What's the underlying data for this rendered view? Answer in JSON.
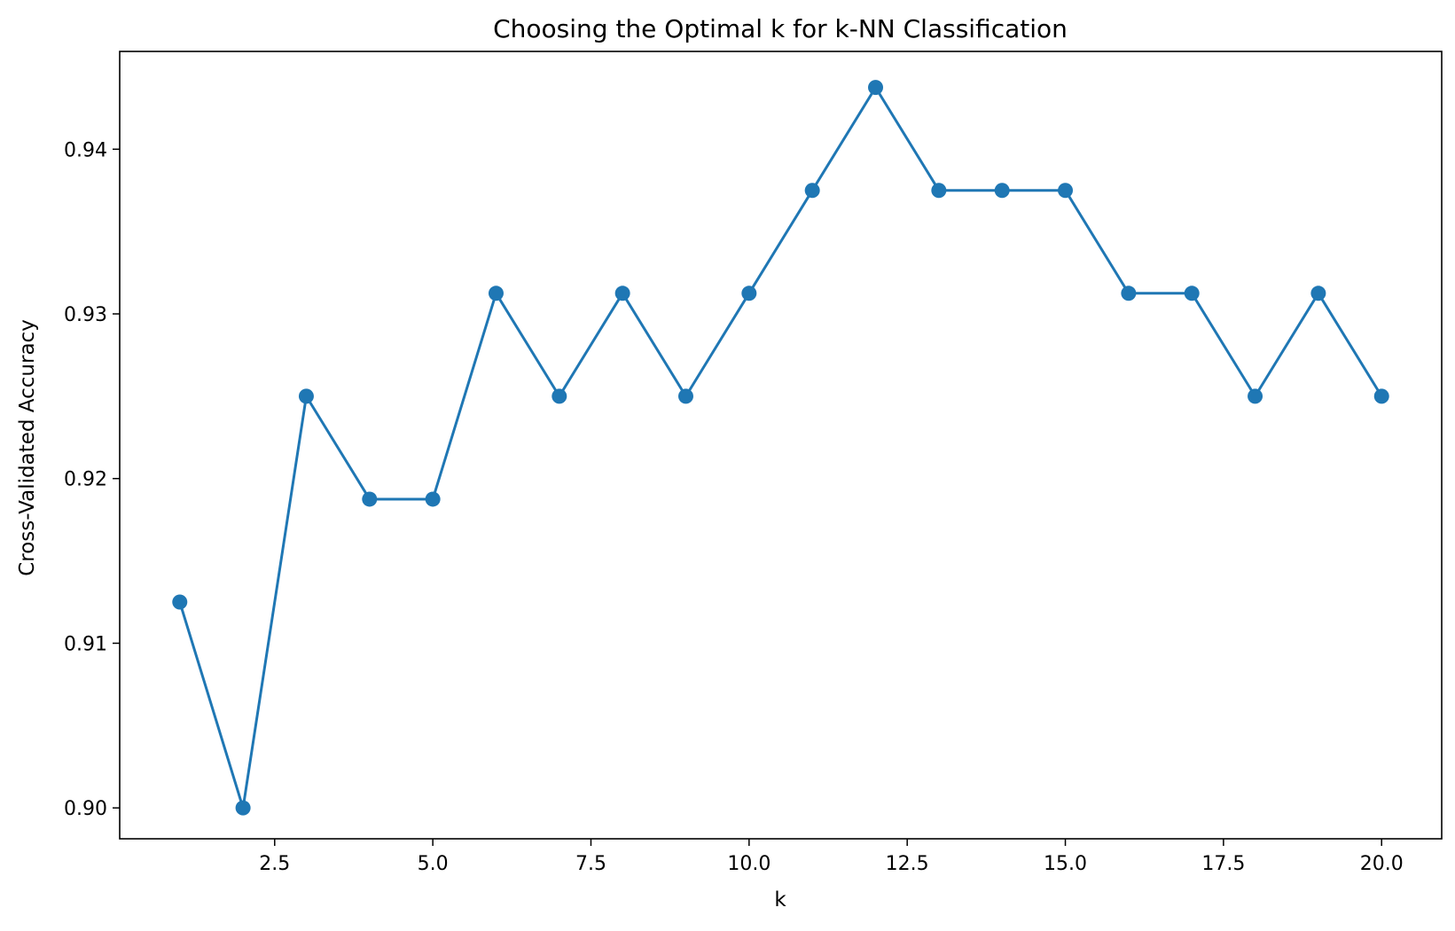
{
  "chart_data": {
    "type": "line",
    "title": "Choosing the Optimal k for k-NN Classification",
    "xlabel": "k",
    "ylabel": "Cross-Validated Accuracy",
    "xlim": [
      0.05,
      20.95
    ],
    "ylim": [
      0.898125,
      0.945938
    ],
    "x_ticks": [
      2.5,
      5.0,
      7.5,
      10.0,
      12.5,
      15.0,
      17.5,
      20.0
    ],
    "x_tick_labels": [
      "2.5",
      "5.0",
      "7.5",
      "10.0",
      "12.5",
      "15.0",
      "17.5",
      "20.0"
    ],
    "y_ticks": [
      0.9,
      0.91,
      0.92,
      0.93,
      0.94
    ],
    "y_tick_labels": [
      "0.90",
      "0.91",
      "0.92",
      "0.93",
      "0.94"
    ],
    "grid": false,
    "series": [
      {
        "color": "#1f77b4",
        "marker": "circle",
        "x": [
          1,
          2,
          3,
          4,
          5,
          6,
          7,
          8,
          9,
          10,
          11,
          12,
          13,
          14,
          15,
          16,
          17,
          18,
          19,
          20
        ],
        "y": [
          0.9125,
          0.9,
          0.925,
          0.91875,
          0.91875,
          0.93125,
          0.925,
          0.93125,
          0.925,
          0.93125,
          0.9375,
          0.94375,
          0.9375,
          0.9375,
          0.9375,
          0.93125,
          0.93125,
          0.925,
          0.93125,
          0.925
        ]
      }
    ]
  }
}
